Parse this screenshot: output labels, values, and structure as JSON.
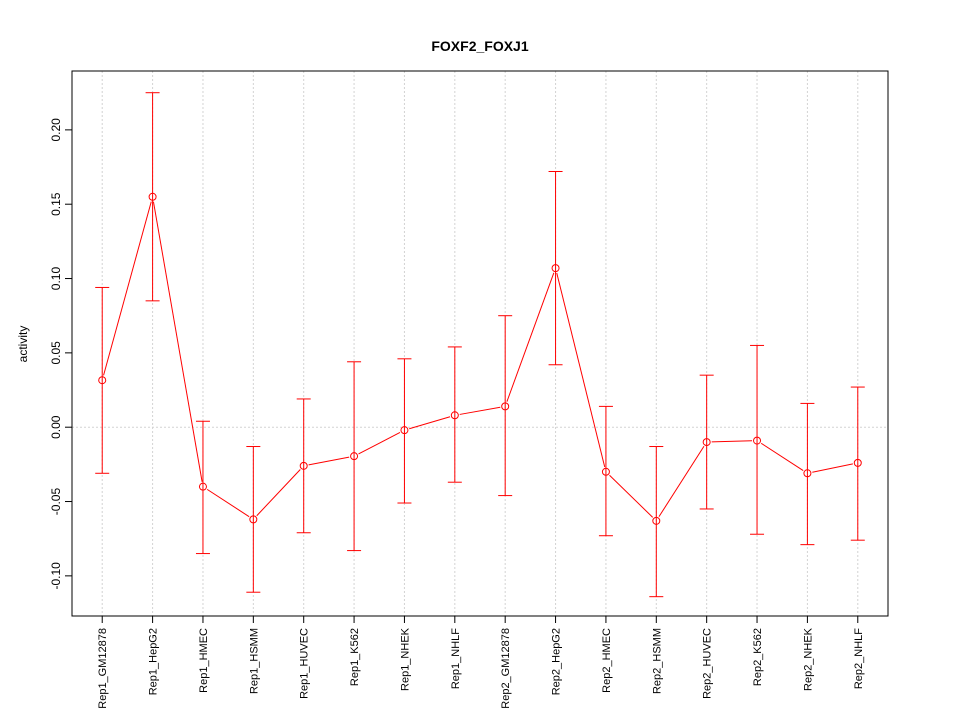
{
  "chart_data": {
    "type": "line",
    "title": "FOXF2_FOXJ1",
    "xlabel": "",
    "ylabel": "activity",
    "ylim": [
      -0.127,
      0.2396
    ],
    "yticks": [
      -0.1,
      -0.05,
      0.0,
      0.05,
      0.1,
      0.15,
      0.2
    ],
    "ytick_labels": [
      "-0.10",
      "-0.05",
      "0.00",
      "0.05",
      "0.10",
      "0.15",
      "0.20"
    ],
    "grid": true,
    "categories": [
      "Rep1_GM12878",
      "Rep1_HepG2",
      "Rep1_HMEC",
      "Rep1_HSMM",
      "Rep1_HUVEC",
      "Rep1_K562",
      "Rep1_NHEK",
      "Rep1_NHLF",
      "Rep2_GM12878",
      "Rep2_HepG2",
      "Rep2_HMEC",
      "Rep2_HSMM",
      "Rep2_HUVEC",
      "Rep2_K562",
      "Rep2_NHEK",
      "Rep2_NHLF"
    ],
    "values": [
      0.0316,
      0.155,
      -0.04,
      -0.062,
      -0.026,
      -0.0195,
      -0.002,
      0.008,
      0.014,
      0.107,
      -0.03,
      -0.063,
      -0.01,
      -0.009,
      -0.031,
      -0.024
    ],
    "upper": [
      0.094,
      0.225,
      0.004,
      -0.013,
      0.019,
      0.044,
      0.046,
      0.054,
      0.075,
      0.172,
      0.014,
      -0.013,
      0.035,
      0.055,
      0.016,
      0.027
    ],
    "lower": [
      -0.031,
      0.085,
      -0.085,
      -0.111,
      -0.071,
      -0.083,
      -0.051,
      -0.037,
      -0.046,
      0.042,
      -0.073,
      -0.114,
      -0.055,
      -0.072,
      -0.079,
      -0.076
    ],
    "color": "#ff0000"
  }
}
